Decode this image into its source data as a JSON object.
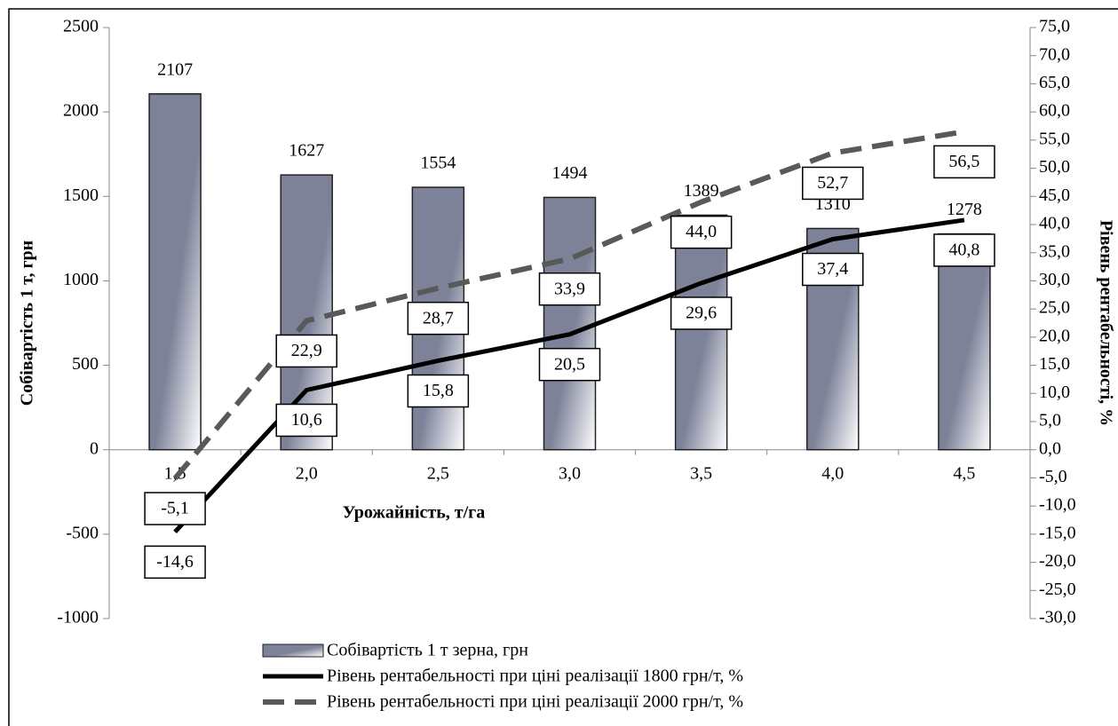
{
  "chart_data": {
    "type": "combo",
    "categories": [
      "1,5",
      "2,0",
      "2,5",
      "3,0",
      "3,5",
      "4,0",
      "4,5"
    ],
    "series": [
      {
        "name": "Собівартість 1 т зерна, грн",
        "type": "bar",
        "color": "#7d8299",
        "values": [
          2107,
          1627,
          1554,
          1494,
          1389,
          1310,
          1278
        ]
      },
      {
        "name": "Рівень рентабельності при ціні реалізації 1800 грн/т, %",
        "type": "line",
        "axis": "y2",
        "color": "#000000",
        "dashed": false,
        "values": [
          -14.6,
          10.6,
          15.8,
          20.5,
          29.6,
          37.4,
          40.8
        ],
        "value_labels": [
          "-14,6",
          "10,6",
          "15,8",
          "20,5",
          "29,6",
          "37,4",
          "40,8"
        ]
      },
      {
        "name": "Рівень рентабельності при ціні реалізації 2000 грн/т, %",
        "type": "line",
        "axis": "y2",
        "color": "#595959",
        "dashed": true,
        "values": [
          -5.1,
          22.9,
          28.7,
          33.9,
          44.0,
          52.7,
          56.5
        ],
        "value_labels": [
          "-5,1",
          "22,9",
          "28,7",
          "33,9",
          "44,0",
          "52,7",
          "56,5"
        ]
      }
    ],
    "xlabel": "Урожайність, т/га",
    "ylabel": "Собівартість 1 т, грн",
    "y2label": "Рівень рентабельності, %",
    "ylim": [
      -1000,
      2500
    ],
    "yticks": [
      -1000,
      -500,
      0,
      500,
      1000,
      1500,
      2000,
      2500
    ],
    "y2lim": [
      -30,
      75
    ],
    "y2ticks": [
      {
        "value": -30,
        "label": "-30,0"
      },
      {
        "value": -25,
        "label": "-25,0"
      },
      {
        "value": -20,
        "label": "-20,0"
      },
      {
        "value": -15,
        "label": "-15,0"
      },
      {
        "value": -10,
        "label": "-10,0"
      },
      {
        "value": -5,
        "label": "-5,0"
      },
      {
        "value": 0,
        "label": "0,0"
      },
      {
        "value": 5,
        "label": "5,0"
      },
      {
        "value": 10,
        "label": "10,0"
      },
      {
        "value": 15,
        "label": "15,0"
      },
      {
        "value": 20,
        "label": "20,0"
      },
      {
        "value": 25,
        "label": "25,0"
      },
      {
        "value": 30,
        "label": "30,0"
      },
      {
        "value": 35,
        "label": "35,0"
      },
      {
        "value": 40,
        "label": "40,0"
      },
      {
        "value": 45,
        "label": "45,0"
      },
      {
        "value": 50,
        "label": "50,0"
      },
      {
        "value": 55,
        "label": "55,0"
      },
      {
        "value": 60,
        "label": "60,0"
      },
      {
        "value": 65,
        "label": "65,0"
      },
      {
        "value": 70,
        "label": "70,0"
      },
      {
        "value": 75,
        "label": "75,0"
      }
    ],
    "legend": "bottom"
  }
}
